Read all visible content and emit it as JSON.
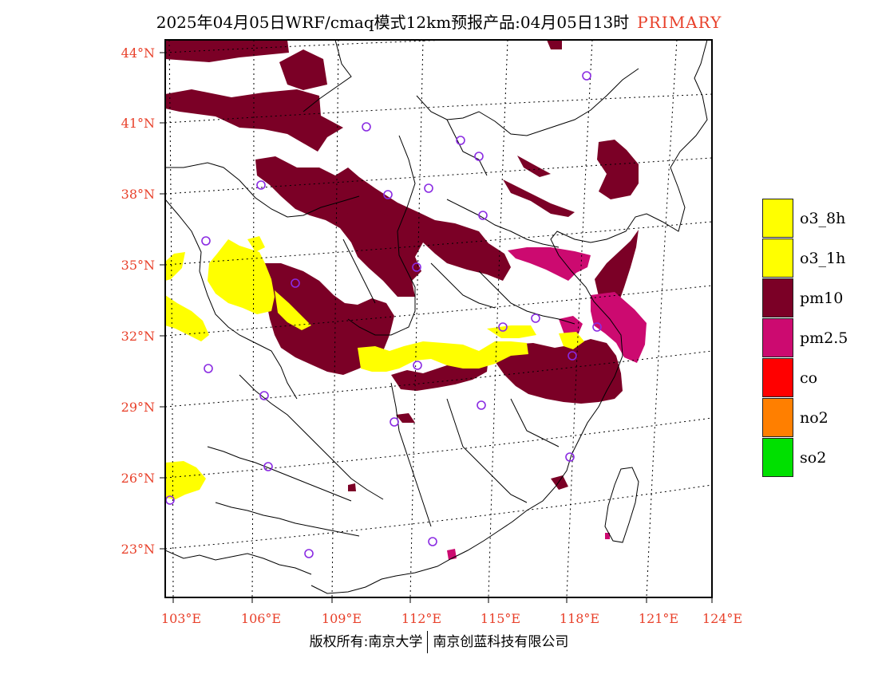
{
  "title": {
    "main": "2025年04月05日WRF/cmaq模式12km预报产品:04月05日13时",
    "tag": "PRIMARY"
  },
  "axes": {
    "lat_labels": [
      "44°N",
      "41°N",
      "38°N",
      "35°N",
      "32°N",
      "29°N",
      "26°N",
      "23°N"
    ],
    "lon_labels": [
      "103°E",
      "106°E",
      "109°E",
      "112°E",
      "115°E",
      "118°E",
      "121°E",
      "124°E"
    ]
  },
  "legend": [
    {
      "label": "o3_8h",
      "color": "#ffff00"
    },
    {
      "label": "o3_1h",
      "color": "#ffff00"
    },
    {
      "label": "pm10",
      "color": "#7b0026"
    },
    {
      "label": "pm2.5",
      "color": "#cc0a70"
    },
    {
      "label": "co",
      "color": "#ff0000"
    },
    {
      "label": "no2",
      "color": "#ff7f00"
    },
    {
      "label": "so2",
      "color": "#00e000"
    }
  ],
  "footer": {
    "left": "版权所有:南京大学",
    "right": "南京创蓝科技有限公司"
  },
  "colors": {
    "pm10": "#7b0026",
    "pm25": "#cc0a70",
    "o3": "#ffff00",
    "station": "#8a2be2",
    "tick_text": "#e8402a"
  }
}
